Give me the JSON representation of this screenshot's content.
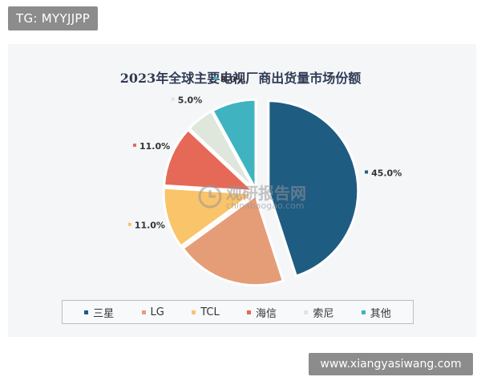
{
  "header_badge": "TG: MYYJJPP",
  "footer_badge": "www.xiangyasiwang.com",
  "watermark": {
    "main": "观研报告网",
    "sub": "chinabaogao.com"
  },
  "chart_data": {
    "type": "pie",
    "title": "2023年全球主要电视厂商出货量市场份额",
    "slices": [
      {
        "name": "三星",
        "value": 45.0,
        "label": "45.0%",
        "color": "#1f5c82"
      },
      {
        "name": "LG",
        "value": 20.0,
        "label": "20.0%",
        "color": "#e59d77"
      },
      {
        "name": "TCL",
        "value": 11.0,
        "label": "11.0%",
        "color": "#fac46a"
      },
      {
        "name": "海信",
        "value": 11.0,
        "label": "11.0%",
        "color": "#e56956"
      },
      {
        "name": "索尼",
        "value": 5.0,
        "label": "5.0%",
        "color": "#dfe6dc"
      },
      {
        "name": "其他",
        "value": 8.0,
        "label": "8.0%",
        "color": "#3fb4c0"
      }
    ],
    "legend_position": "bottom"
  }
}
